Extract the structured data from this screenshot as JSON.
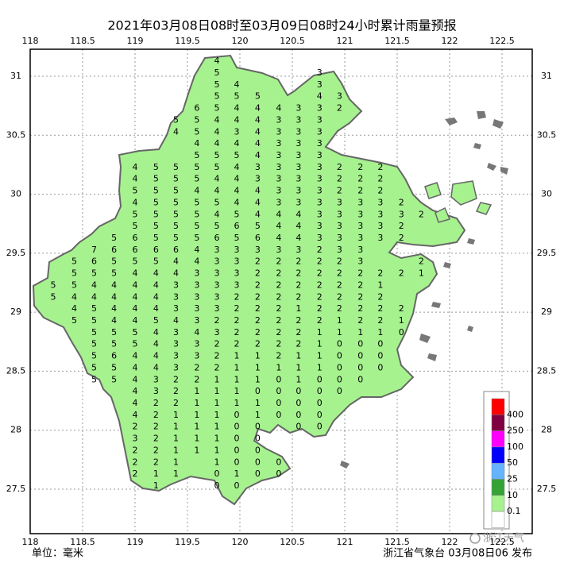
{
  "map": {
    "title": "2021年03月08日08时至03月09日08时24小时累计雨量预报",
    "xlim": [
      118,
      122.788
    ],
    "ylim": [
      27.123,
      31.229
    ],
    "xticks": [
      118,
      118.5,
      119,
      119.5,
      120,
      120.5,
      121,
      121.5,
      122,
      122.5
    ],
    "yticks": [
      27.5,
      28,
      28.5,
      29,
      29.5,
      30,
      30.5,
      31
    ],
    "grid": true,
    "stations": {
      "lons": [
        118.22,
        118.42,
        118.61,
        118.8,
        119.0,
        119.2,
        119.39,
        119.59,
        119.78,
        119.97,
        120.17,
        120.37,
        120.56,
        120.76,
        120.95,
        121.15,
        121.34,
        121.54,
        121.73
      ],
      "rows": [
        {
          "lat": 31.1,
          "values": [
            null,
            null,
            null,
            null,
            null,
            null,
            null,
            null,
            4,
            null,
            null,
            null,
            null,
            null,
            null,
            null,
            null,
            null,
            null
          ]
        },
        {
          "lat": 31.0,
          "values": [
            null,
            null,
            null,
            null,
            null,
            null,
            null,
            null,
            5,
            null,
            null,
            null,
            null,
            3,
            null,
            null,
            null,
            null,
            null
          ]
        },
        {
          "lat": 30.9,
          "values": [
            null,
            null,
            null,
            null,
            null,
            null,
            null,
            null,
            5,
            4,
            null,
            null,
            null,
            3,
            null,
            null,
            null,
            null,
            null
          ]
        },
        {
          "lat": 30.8,
          "values": [
            null,
            null,
            null,
            null,
            null,
            null,
            null,
            null,
            5,
            5,
            5,
            null,
            null,
            4,
            3,
            null,
            null,
            null,
            null
          ]
        },
        {
          "lat": 30.7,
          "values": [
            null,
            null,
            null,
            null,
            null,
            null,
            null,
            6,
            5,
            4,
            4,
            4,
            3,
            3,
            2,
            null,
            null,
            null,
            null
          ]
        },
        {
          "lat": 30.6,
          "values": [
            null,
            null,
            null,
            null,
            null,
            null,
            5,
            5,
            4,
            4,
            4,
            3,
            3,
            3,
            null,
            null,
            null,
            null,
            null
          ]
        },
        {
          "lat": 30.5,
          "values": [
            null,
            null,
            null,
            null,
            null,
            null,
            4,
            5,
            4,
            3,
            4,
            3,
            3,
            3,
            null,
            null,
            null,
            null,
            null
          ]
        },
        {
          "lat": 30.4,
          "values": [
            null,
            null,
            null,
            null,
            null,
            null,
            null,
            4,
            4,
            4,
            4,
            3,
            3,
            3,
            null,
            null,
            null,
            null,
            null
          ]
        },
        {
          "lat": 30.3,
          "values": [
            null,
            null,
            null,
            null,
            null,
            null,
            null,
            5,
            5,
            5,
            4,
            3,
            3,
            3,
            null,
            null,
            null,
            null,
            null
          ]
        },
        {
          "lat": 30.2,
          "values": [
            null,
            null,
            null,
            null,
            4,
            5,
            5,
            5,
            5,
            4,
            3,
            3,
            3,
            3,
            2,
            2,
            2,
            null,
            null
          ]
        },
        {
          "lat": 30.1,
          "values": [
            null,
            null,
            null,
            null,
            4,
            5,
            5,
            5,
            4,
            4,
            3,
            3,
            3,
            3,
            2,
            2,
            2,
            null,
            null
          ]
        },
        {
          "lat": 30.0,
          "values": [
            null,
            null,
            null,
            null,
            5,
            5,
            5,
            4,
            4,
            4,
            4,
            3,
            3,
            3,
            2,
            2,
            2,
            null,
            null
          ]
        },
        {
          "lat": 29.9,
          "values": [
            null,
            null,
            null,
            null,
            4,
            5,
            5,
            5,
            5,
            4,
            4,
            3,
            3,
            3,
            3,
            3,
            3,
            2,
            null
          ]
        },
        {
          "lat": 29.8,
          "values": [
            null,
            null,
            null,
            null,
            5,
            5,
            5,
            5,
            4,
            5,
            4,
            4,
            4,
            3,
            3,
            3,
            3,
            3,
            2
          ]
        },
        {
          "lat": 29.7,
          "values": [
            null,
            null,
            null,
            null,
            5,
            5,
            5,
            5,
            5,
            6,
            5,
            4,
            4,
            3,
            3,
            3,
            3,
            2,
            null
          ]
        },
        {
          "lat": 29.6,
          "values": [
            null,
            null,
            null,
            5,
            6,
            5,
            5,
            5,
            6,
            5,
            6,
            4,
            4,
            3,
            3,
            3,
            3,
            2,
            null
          ]
        },
        {
          "lat": 29.5,
          "values": [
            null,
            null,
            7,
            6,
            6,
            6,
            6,
            4,
            3,
            3,
            3,
            3,
            3,
            2,
            3,
            3,
            null,
            null,
            null
          ]
        },
        {
          "lat": 29.4,
          "values": [
            null,
            5,
            6,
            5,
            5,
            5,
            4,
            4,
            3,
            3,
            2,
            2,
            2,
            2,
            2,
            3,
            null,
            null,
            2
          ]
        },
        {
          "lat": 29.3,
          "values": [
            null,
            5,
            5,
            5,
            4,
            4,
            4,
            3,
            3,
            3,
            2,
            2,
            2,
            2,
            2,
            2,
            2,
            2,
            1
          ]
        },
        {
          "lat": 29.2,
          "values": [
            5,
            5,
            4,
            4,
            4,
            4,
            3,
            3,
            3,
            3,
            2,
            2,
            2,
            2,
            2,
            2,
            1,
            null,
            null
          ]
        },
        {
          "lat": 29.1,
          "values": [
            5,
            4,
            4,
            4,
            4,
            4,
            3,
            3,
            3,
            2,
            2,
            2,
            2,
            2,
            2,
            2,
            2,
            null,
            null
          ]
        },
        {
          "lat": 29.0,
          "values": [
            null,
            4,
            5,
            4,
            4,
            4,
            3,
            3,
            3,
            2,
            2,
            2,
            1,
            2,
            2,
            2,
            2,
            2,
            null
          ]
        },
        {
          "lat": 28.9,
          "values": [
            null,
            5,
            5,
            4,
            4,
            5,
            4,
            3,
            2,
            2,
            2,
            2,
            2,
            2,
            1,
            2,
            2,
            1,
            null
          ]
        },
        {
          "lat": 28.8,
          "values": [
            null,
            null,
            5,
            5,
            5,
            4,
            3,
            4,
            3,
            2,
            2,
            2,
            2,
            1,
            1,
            1,
            1,
            0,
            null
          ]
        },
        {
          "lat": 28.7,
          "values": [
            null,
            null,
            5,
            5,
            5,
            4,
            3,
            3,
            2,
            2,
            2,
            2,
            2,
            1,
            0,
            0,
            0,
            null,
            null
          ]
        },
        {
          "lat": 28.6,
          "values": [
            null,
            null,
            5,
            6,
            4,
            4,
            3,
            3,
            2,
            1,
            1,
            2,
            1,
            1,
            0,
            0,
            0,
            null,
            null
          ]
        },
        {
          "lat": 28.5,
          "values": [
            null,
            null,
            5,
            5,
            4,
            4,
            3,
            2,
            2,
            1,
            1,
            1,
            1,
            1,
            0,
            0,
            0,
            null,
            null
          ]
        },
        {
          "lat": 28.4,
          "values": [
            null,
            null,
            5,
            5,
            4,
            3,
            2,
            2,
            1,
            1,
            1,
            0,
            1,
            0,
            0,
            0,
            null,
            null,
            null
          ]
        },
        {
          "lat": 28.3,
          "values": [
            null,
            null,
            null,
            null,
            4,
            3,
            2,
            1,
            1,
            1,
            0,
            0,
            0,
            0,
            0,
            null,
            null,
            null,
            null
          ]
        },
        {
          "lat": 28.2,
          "values": [
            null,
            null,
            null,
            null,
            4,
            2,
            2,
            1,
            1,
            1,
            1,
            0,
            0,
            0,
            null,
            null,
            null,
            null,
            null
          ]
        },
        {
          "lat": 28.1,
          "values": [
            null,
            null,
            null,
            null,
            4,
            2,
            1,
            1,
            1,
            0,
            1,
            0,
            0,
            0,
            null,
            null,
            null,
            null,
            null
          ]
        },
        {
          "lat": 28.0,
          "values": [
            null,
            null,
            null,
            null,
            2,
            2,
            1,
            1,
            1,
            0,
            0,
            null,
            0,
            0,
            null,
            null,
            null,
            null,
            null
          ]
        },
        {
          "lat": 27.9,
          "values": [
            null,
            null,
            null,
            null,
            3,
            2,
            1,
            1,
            1,
            0,
            0,
            null,
            null,
            null,
            null,
            null,
            null,
            null,
            null
          ]
        },
        {
          "lat": 27.8,
          "values": [
            null,
            null,
            null,
            null,
            2,
            2,
            1,
            1,
            1,
            0,
            0,
            null,
            null,
            null,
            null,
            null,
            null,
            null,
            null
          ]
        },
        {
          "lat": 27.7,
          "values": [
            null,
            null,
            null,
            null,
            2,
            2,
            1,
            null,
            1,
            0,
            0,
            0,
            null,
            null,
            null,
            null,
            null,
            null,
            null
          ]
        },
        {
          "lat": 27.6,
          "values": [
            null,
            null,
            null,
            null,
            2,
            1,
            1,
            null,
            0,
            1,
            0,
            0,
            null,
            null,
            null,
            null,
            null,
            null,
            null
          ]
        },
        {
          "lat": 27.5,
          "values": [
            null,
            null,
            null,
            null,
            null,
            1,
            null,
            null,
            0,
            0,
            null,
            null,
            null,
            null,
            null,
            null,
            null,
            null,
            null
          ]
        }
      ]
    },
    "legend": {
      "colors": [
        "#ff0000",
        "#7f0040",
        "#ff00ff",
        "#0000ff",
        "#64b4ff",
        "#34a234",
        "#a6f28f",
        "#ffffff"
      ],
      "levels": [
        400,
        250,
        100,
        50,
        25,
        10,
        0.1
      ]
    },
    "unit": "单位：毫米",
    "footer": "浙江省气象台 03月08日06 发布",
    "watermark": "浙江天气"
  }
}
